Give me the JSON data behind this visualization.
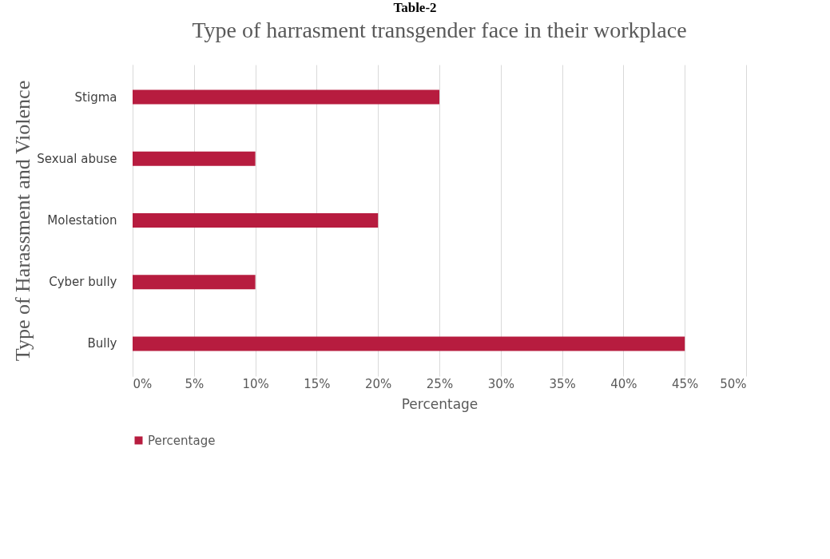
{
  "chart_data": {
    "type": "bar",
    "orientation": "horizontal",
    "title": "Type of harrasment transgender face in their workplace",
    "annotations": [
      "Table-2"
    ],
    "xlabel": "Percentage",
    "ylabel": "Type of Harassment and Violence",
    "categories": [
      "Stigma",
      "Sexual abuse",
      "Molestation",
      "Cyber bully",
      "Bully"
    ],
    "series": [
      {
        "name": "Percentage",
        "color": "#b71c3f",
        "values": [
          25,
          10,
          20,
          10,
          45
        ]
      }
    ],
    "xlim": [
      0,
      50
    ],
    "xticks": [
      {
        "value": 0,
        "label": "0%"
      },
      {
        "value": 5,
        "label": "5%"
      },
      {
        "value": 10,
        "label": "10%"
      },
      {
        "value": 15,
        "label": "15%"
      },
      {
        "value": 20,
        "label": "20%"
      },
      {
        "value": 25,
        "label": "25%"
      },
      {
        "value": 30,
        "label": "30%"
      },
      {
        "value": 35,
        "label": "35%"
      },
      {
        "value": 40,
        "label": "40%"
      },
      {
        "value": 45,
        "label": "45%"
      },
      {
        "value": 50,
        "label": "50%"
      }
    ],
    "grid": "x",
    "legend": "bottom"
  }
}
